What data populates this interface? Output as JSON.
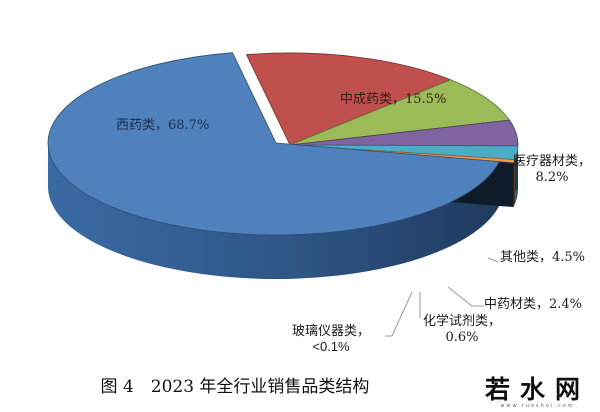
{
  "chart_data": {
    "type": "pie",
    "style": "3d-exploded",
    "title": "图4 2023年全行业销售品类结构",
    "unit": "%",
    "categories": [
      "西药类",
      "中成药类",
      "医疗器材类",
      "其他类",
      "中药材类",
      "化学试剂类",
      "玻璃仪器类"
    ],
    "values": [
      68.7,
      15.5,
      8.2,
      4.5,
      2.4,
      0.6,
      0.1
    ],
    "value_labels": [
      "68.7%",
      "15.5%",
      "8.2%",
      "4.5%",
      "2.4%",
      "0.6%",
      "<0.1%"
    ],
    "colors": [
      "#4f81bd",
      "#c0504d",
      "#9bbb59",
      "#8064a2",
      "#4bacc6",
      "#f79646",
      "#2c4d75"
    ],
    "exploded": [
      "西药类"
    ],
    "legend": "none",
    "data_labels": "category, value"
  },
  "labels": {
    "xiyao": "西药类，68.7%",
    "zhongchengyao": "中成药类，15.5%",
    "yiliao_line1": "医疗器材类，",
    "yiliao_line2": "8.2%",
    "qita": "其他类，4.5%",
    "zhongyaocai": "中药材类，2.4%",
    "huaxue_line1": "化学试剂类，",
    "huaxue_line2": "0.6%",
    "boli_line1": "玻璃仪器类，",
    "boli_line2": "<0.1%"
  },
  "caption": "图 4　2023 年全行业销售品类结构",
  "watermark": {
    "text": "若水网",
    "subtext": "www.ruoshui.com"
  }
}
